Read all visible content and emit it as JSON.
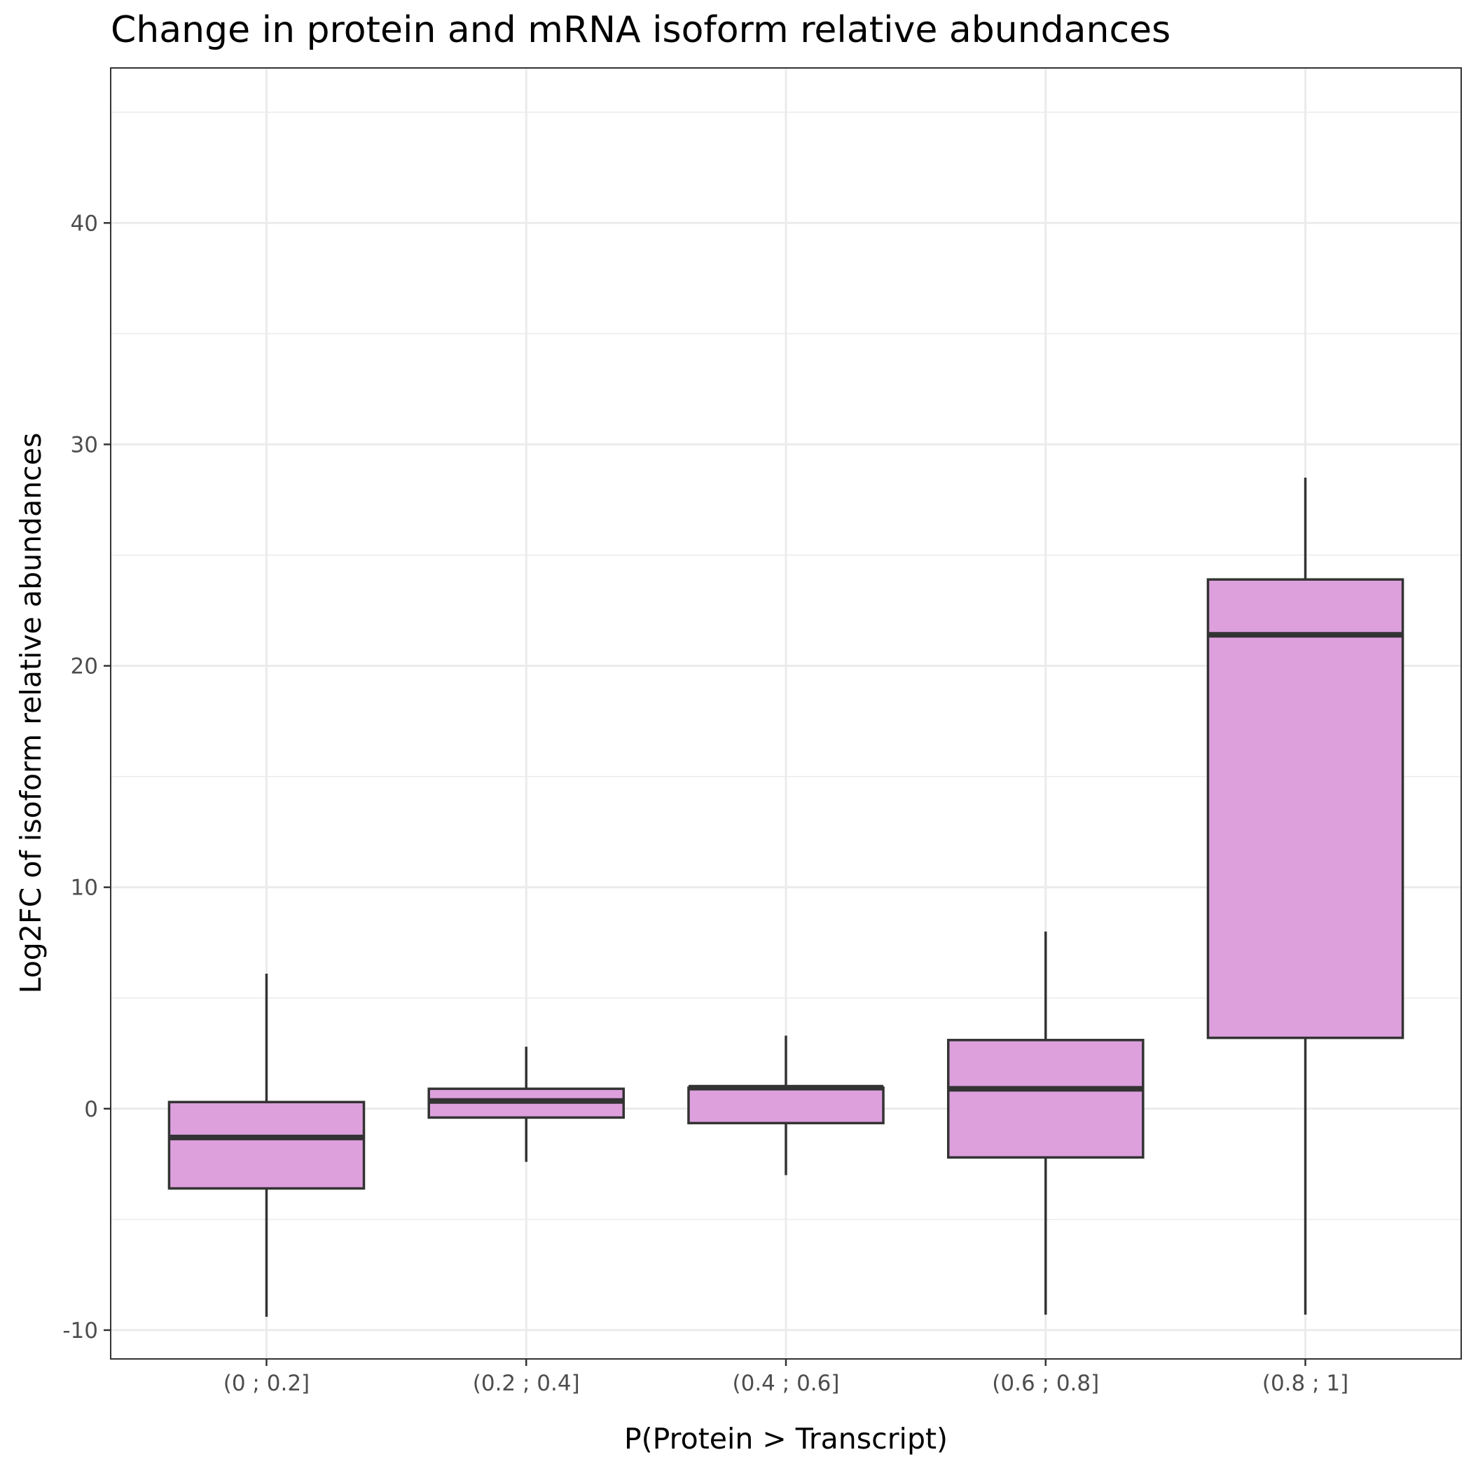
{
  "chart_data": {
    "type": "box",
    "title": "Change in protein and mRNA isoform relative abundances",
    "xlabel": "P(Protein > Transcript)",
    "ylabel": "Log2FC of isoform relative abundances",
    "categories": [
      "(0 ; 0.2]",
      "(0.2 ; 0.4]",
      "(0.4 ; 0.6]",
      "(0.6 ; 0.8]",
      "(0.8 ; 1]"
    ],
    "boxes": [
      {
        "category": "(0 ; 0.2]",
        "whisker_low": -9.4,
        "q1": -3.6,
        "median": -1.3,
        "q3": 0.3,
        "whisker_high": 6.1
      },
      {
        "category": "(0.2 ; 0.4]",
        "whisker_low": -2.4,
        "q1": -0.4,
        "median": 0.35,
        "q3": 0.9,
        "whisker_high": 2.8
      },
      {
        "category": "(0.4 ; 0.6]",
        "whisker_low": -3.0,
        "q1": -0.65,
        "median": 0.95,
        "q3": 0.95,
        "whisker_high": 3.3
      },
      {
        "category": "(0.6 ; 0.8]",
        "whisker_low": -9.3,
        "q1": -2.2,
        "median": 0.9,
        "q3": 3.1,
        "whisker_high": 8.0
      },
      {
        "category": "(0.8 ; 1]",
        "whisker_low": -9.3,
        "q1": 3.2,
        "median": 21.4,
        "q3": 23.9,
        "whisker_high": 28.5
      }
    ],
    "y_ticks": [
      -10,
      0,
      10,
      20,
      30,
      40
    ],
    "y_tick_labels": [
      "-10",
      "0",
      "10",
      "20",
      "30",
      "40"
    ],
    "ylim": [
      -11.3,
      47.0
    ],
    "grid": true,
    "legend": "none",
    "box_fill": "#dda0dd",
    "box_stroke": "#333333"
  }
}
